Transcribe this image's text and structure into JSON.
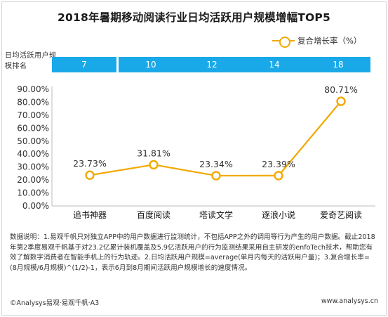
{
  "title": "2018年暑期移动阅读行业日均活跃用户规模增幅TOP5",
  "legend": "复合增长率（%）",
  "rank_label": "日均活跃用户规模排名",
  "ranks": [
    "7",
    "10",
    "12",
    "14",
    "18"
  ],
  "chart_data": {
    "type": "line",
    "categories": [
      "追书神器",
      "百度阅读",
      "塔读文学",
      "逐浪小说",
      "爱奇艺阅读"
    ],
    "series": [
      {
        "name": "复合增长率（%）",
        "values": [
          23.73,
          31.81,
          23.34,
          23.39,
          80.71
        ]
      }
    ],
    "data_labels": [
      "23.73%",
      "31.81%",
      "23.34%",
      "23.39%",
      "80.71%"
    ],
    "yticks": [
      "90.00%",
      "80.00%",
      "70.00%",
      "60.00%",
      "50.00%",
      "40.00%",
      "30.00%",
      "20.00%",
      "10.00%",
      "0.00%"
    ],
    "ylim": [
      0,
      90
    ],
    "grid": false,
    "legend_position": "top-right",
    "color": "#f2a900"
  },
  "note": "数据说明：1.易观千帆只对独立APP中的用户数据进行监测统计，不包括APP之外的调用等行为产生的用户数据。截止2018年第2季度易观千帆基于对23.2亿累计装机覆盖及5.9亿活跃用户的行为监测结果采用自主研发的enfoTech技术，帮助您有效了解数字消费者在智能手机上的行为轨迹。2.日均活跃用户规模=average(单月内每天的活跃用户量)；3.复合增长率=(8月规模/6月规模)^(1/2)-1，表示6月到8月期间活跃用户规模增长的速度情况。",
  "footer_left": "©Analysys易观·易观千帆·A3",
  "footer_right": "www.analysys.cn"
}
